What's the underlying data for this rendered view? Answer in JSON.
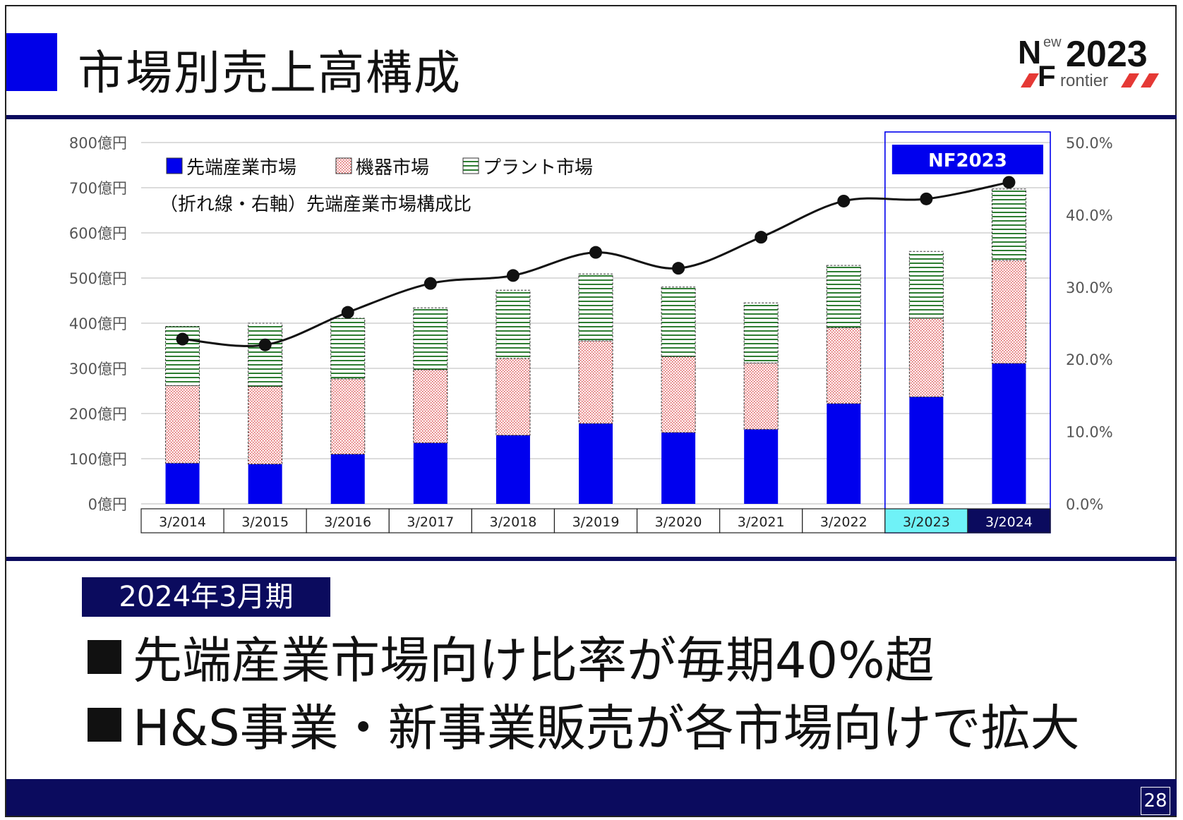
{
  "slide": {
    "title": "市場別売上高構成",
    "logo_new": "ew",
    "logo_n": "N",
    "logo_f": "F",
    "logo_year": "2023",
    "logo_rontier": "rontier",
    "period_tag": "2024年3月期",
    "bullets": [
      "先端産業市場向け比率が毎期40%超",
      "H&S事業・新事業販売が各市場向けで拡大"
    ],
    "page_number": "28"
  },
  "colors": {
    "advanced": "#0000ee",
    "equipment": "#d94040",
    "plant": "#2e7d32",
    "navy": "#0b0b5e",
    "highlight_2023": "#6ff2f7",
    "nf_box": "#0000ee"
  },
  "chart_data": {
    "type": "bar",
    "stacked": true,
    "categories": [
      "3/2014",
      "3/2015",
      "3/2016",
      "3/2017",
      "3/2018",
      "3/2019",
      "3/2020",
      "3/2021",
      "3/2022",
      "3/2023",
      "3/2024"
    ],
    "series": [
      {
        "name": "先端産業市場",
        "values": [
          90,
          88,
          110,
          135,
          152,
          178,
          158,
          165,
          222,
          237,
          311
        ]
      },
      {
        "name": "機器市場",
        "values": [
          172,
          172,
          167,
          162,
          170,
          183,
          168,
          147,
          168,
          174,
          228
        ]
      },
      {
        "name": "プラント市場",
        "values": [
          131,
          140,
          134,
          137,
          151,
          148,
          154,
          133,
          138,
          148,
          158
        ]
      }
    ],
    "line": {
      "name": "（折れ線・右軸）先端産業市場構成比",
      "values": [
        22.8,
        22.0,
        26.5,
        30.5,
        31.6,
        34.8,
        32.6,
        36.9,
        41.9,
        42.2,
        44.5
      ]
    },
    "y_left": {
      "min": 0,
      "max": 800,
      "ticks": [
        "0億円",
        "100億円",
        "200億円",
        "300億円",
        "400億円",
        "500億円",
        "600億円",
        "700億円",
        "800億円"
      ]
    },
    "y_right": {
      "min": 0,
      "max": 50,
      "ticks": [
        "0.0%",
        "10.0%",
        "20.0%",
        "30.0%",
        "40.0%",
        "50.0%"
      ]
    },
    "highlight_label": "NF2023",
    "legend_position": "top-left",
    "grid": true
  }
}
